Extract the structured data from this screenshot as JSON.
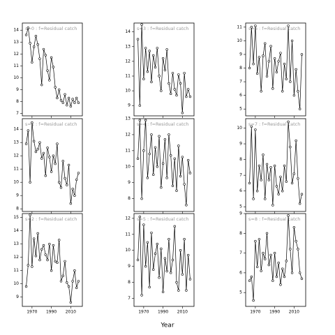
{
  "xlabel": "Year",
  "chart_data": [
    {
      "type": "line",
      "title": "s=0 : f=Residual catch",
      "x": [
        1964,
        1966,
        1968,
        1970,
        1972,
        1974,
        1976,
        1978,
        1980,
        1982,
        1984,
        1986,
        1988,
        1990,
        1992,
        1994,
        1996,
        1998,
        2000,
        2002,
        2004,
        2006,
        2008,
        2010,
        2012,
        2014,
        2016,
        2018
      ],
      "values": [
        13.6,
        14.2,
        12.9,
        11.3,
        12.6,
        13.5,
        12.8,
        11.6,
        9.4,
        12.4,
        11.9,
        10.6,
        9.8,
        11.7,
        10.9,
        9.2,
        8.3,
        9.0,
        8.1,
        7.9,
        8.6,
        7.7,
        8.3,
        7.6,
        8.2,
        7.9,
        8.3,
        7.9
      ],
      "xlim": [
        1960,
        2022
      ],
      "ylim": [
        6.8,
        14.6
      ],
      "yticks": [
        7,
        8,
        9,
        10,
        11,
        12,
        13,
        14
      ],
      "xticks": [
        1970,
        1990,
        2010
      ]
    },
    {
      "type": "line",
      "title": "s=1 : f=Residual catch",
      "x": [
        1964,
        1966,
        1968,
        1970,
        1972,
        1974,
        1976,
        1978,
        1980,
        1982,
        1984,
        1986,
        1988,
        1990,
        1992,
        1994,
        1996,
        1998,
        2000,
        2002,
        2004,
        2006,
        2008,
        2010,
        2012,
        2014,
        2016,
        2018
      ],
      "values": [
        12.9,
        13.9,
        10.0,
        14.5,
        13.1,
        12.3,
        12.5,
        13.0,
        11.8,
        12.2,
        10.5,
        12.6,
        11.9,
        10.8,
        12.0,
        11.4,
        12.9,
        10.0,
        9.6,
        11.6,
        10.3,
        9.8,
        11.3,
        8.4,
        9.5,
        9.0,
        10.2,
        10.7
      ],
      "xlim": [
        1960,
        2022
      ],
      "ylim": [
        7.8,
        14.8
      ],
      "yticks": [
        8,
        9,
        10,
        11,
        12,
        13,
        14
      ],
      "xticks": [
        1970,
        1990,
        2010
      ]
    },
    {
      "type": "line",
      "title": "s=2 : f=Residual catch",
      "x": [
        1964,
        1966,
        1968,
        1970,
        1972,
        1974,
        1976,
        1978,
        1980,
        1982,
        1984,
        1986,
        1988,
        1990,
        1992,
        1994,
        1996,
        1998,
        2000,
        2002,
        2004,
        2006,
        2008,
        2010,
        2012,
        2014,
        2016,
        2018
      ],
      "values": [
        9.8,
        11.4,
        15.2,
        11.3,
        13.4,
        12.1,
        13.8,
        11.8,
        12.6,
        12.9,
        12.2,
        11.8,
        13.0,
        11.0,
        12.9,
        11.7,
        11.6,
        13.3,
        10.2,
        10.6,
        11.7,
        10.1,
        9.8,
        8.6,
        10.2,
        11.0,
        9.7,
        10.2
      ],
      "xlim": [
        1960,
        2022
      ],
      "ylim": [
        8.3,
        15.3
      ],
      "yticks": [
        9,
        10,
        11,
        12,
        13,
        14,
        15
      ],
      "xticks": [
        1970,
        1990,
        2010
      ]
    },
    {
      "type": "line",
      "title": "s=3 : f=Residual catch",
      "x": [
        1964,
        1966,
        1968,
        1970,
        1972,
        1974,
        1976,
        1978,
        1980,
        1982,
        1984,
        1986,
        1988,
        1990,
        1992,
        1994,
        1996,
        1998,
        2000,
        2002,
        2004,
        2006,
        2008,
        2010,
        2012,
        2014,
        2016,
        2018
      ],
      "values": [
        13.5,
        9.0,
        14.5,
        10.8,
        12.9,
        11.3,
        12.7,
        10.6,
        12.4,
        11.6,
        12.9,
        11.0,
        10.0,
        12.2,
        11.4,
        12.8,
        10.5,
        9.8,
        11.2,
        10.1,
        9.7,
        11.1,
        10.5,
        8.5,
        11.2,
        9.6,
        10.1,
        9.6
      ],
      "xlim": [
        1960,
        2022
      ],
      "ylim": [
        8.3,
        14.6
      ],
      "yticks": [
        9,
        10,
        11,
        12,
        13,
        14
      ],
      "xticks": [
        1970,
        1990,
        2010
      ]
    },
    {
      "type": "line",
      "title": "s=4 : f=Residual catch",
      "x": [
        1964,
        1966,
        1968,
        1970,
        1972,
        1974,
        1976,
        1978,
        1980,
        1982,
        1984,
        1986,
        1988,
        1990,
        1992,
        1994,
        1996,
        1998,
        2000,
        2002,
        2004,
        2006,
        2008,
        2010,
        2012,
        2014,
        2016,
        2018
      ],
      "values": [
        10.5,
        12.9,
        8.0,
        11.0,
        12.9,
        9.3,
        10.8,
        12.0,
        9.5,
        11.2,
        10.0,
        11.9,
        8.7,
        10.2,
        11.7,
        9.3,
        12.0,
        10.7,
        8.8,
        10.5,
        8.5,
        11.3,
        9.4,
        10.6,
        8.9,
        7.6,
        10.4,
        9.6
      ],
      "xlim": [
        1960,
        2022
      ],
      "ylim": [
        7.2,
        13
      ],
      "yticks": [
        8,
        9,
        10,
        11,
        12,
        13
      ],
      "xticks": [
        1970,
        1990,
        2010
      ]
    },
    {
      "type": "line",
      "title": "s=5 : f=Residual catch",
      "x": [
        1964,
        1966,
        1968,
        1970,
        1972,
        1974,
        1976,
        1978,
        1980,
        1982,
        1984,
        1986,
        1988,
        1990,
        1992,
        1994,
        1996,
        1998,
        2000,
        2002,
        2004,
        2006,
        2008,
        2010,
        2012,
        2014,
        2016,
        2018
      ],
      "values": [
        9.4,
        12.1,
        7.2,
        11.6,
        9.0,
        10.5,
        7.7,
        11.1,
        8.8,
        9.8,
        10.4,
        8.3,
        10.1,
        7.4,
        9.5,
        8.7,
        10.7,
        8.6,
        9.4,
        11.5,
        8.0,
        7.5,
        10.0,
        8.5,
        10.7,
        7.5,
        9.7,
        8.2
      ],
      "xlim": [
        1960,
        2022
      ],
      "ylim": [
        6.5,
        12.3
      ],
      "yticks": [
        7,
        8,
        9,
        10,
        11,
        12
      ],
      "xticks": [
        1970,
        1990,
        2010
      ]
    },
    {
      "type": "line",
      "title": "s=6 : f=Residual catch",
      "x": [
        1964,
        1966,
        1968,
        1970,
        1972,
        1974,
        1976,
        1978,
        1980,
        1982,
        1984,
        1986,
        1988,
        1990,
        1992,
        1994,
        1996,
        1998,
        2000,
        2002,
        2004,
        2006,
        2008,
        2010,
        2012,
        2014,
        2016,
        2018
      ],
      "values": [
        8.0,
        11.0,
        8.3,
        11.1,
        7.6,
        8.8,
        6.3,
        8.9,
        9.8,
        7.4,
        8.5,
        9.6,
        6.5,
        8.7,
        7.7,
        8.5,
        9.1,
        6.3,
        8.3,
        7.2,
        11.1,
        7.0,
        10.0,
        6.0,
        7.9,
        6.3,
        5.0,
        9.0
      ],
      "xlim": [
        1960,
        2022
      ],
      "ylim": [
        4.5,
        11.3
      ],
      "yticks": [
        5,
        6,
        7,
        8,
        9,
        10,
        11
      ],
      "xticks": [
        1970,
        1990,
        2010
      ]
    },
    {
      "type": "line",
      "title": "s=7 : f=Residual catch",
      "x": [
        1964,
        1966,
        1968,
        1970,
        1972,
        1974,
        1976,
        1978,
        1980,
        1982,
        1984,
        1986,
        1988,
        1990,
        1992,
        1994,
        1996,
        1998,
        2000,
        2002,
        2004,
        2006,
        2008,
        2010,
        2012,
        2014,
        2016,
        2018
      ],
      "values": [
        6.5,
        10.1,
        5.5,
        9.9,
        6.0,
        7.6,
        6.7,
        8.3,
        5.5,
        7.7,
        6.7,
        7.5,
        5.1,
        7.6,
        6.3,
        5.8,
        6.9,
        6.0,
        7.6,
        6.6,
        10.4,
        8.8,
        6.5,
        7.1,
        9.2,
        6.8,
        5.2,
        5.8
      ],
      "xlim": [
        1960,
        2022
      ],
      "ylim": [
        4.7,
        10.6
      ],
      "yticks": [
        5,
        6,
        7,
        8,
        9,
        10
      ],
      "xticks": [
        1970,
        1990,
        2010
      ]
    },
    {
      "type": "line",
      "title": "s=8 : f=Residual catch",
      "x": [
        1964,
        1966,
        1968,
        1970,
        1972,
        1974,
        1976,
        1978,
        1980,
        1982,
        1984,
        1986,
        1988,
        1990,
        1992,
        1994,
        1996,
        1998,
        2000,
        2002,
        2004,
        2006,
        2008,
        2010,
        2012,
        2014,
        2016,
        2018
      ],
      "values": [
        5.6,
        5.8,
        4.6,
        7.6,
        6.3,
        7.7,
        6.1,
        7.0,
        6.7,
        8.0,
        6.4,
        6.9,
        5.6,
        7.0,
        5.8,
        6.5,
        5.4,
        6.2,
        5.8,
        6.6,
        8.9,
        7.2,
        6.0,
        8.3,
        7.6,
        7.2,
        6.0,
        5.7
      ],
      "xlim": [
        1960,
        2022
      ],
      "ylim": [
        4.3,
        9
      ],
      "yticks": [
        5,
        6,
        7,
        8,
        9
      ],
      "xticks": [
        1970,
        1990,
        2010
      ]
    }
  ]
}
